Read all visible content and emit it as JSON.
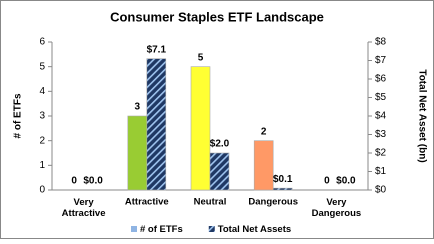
{
  "chart_data": {
    "type": "bar",
    "title": "Consumer Staples ETF Landscape",
    "categories": [
      "Very Attractive",
      "Attractive",
      "Neutral",
      "Dangerous",
      "Very Dangerous"
    ],
    "y_label": "# of ETFs",
    "y2_label": "Total Net Asset (bn)",
    "series": [
      {
        "name": "# of ETFs",
        "color": "#8fb4e3",
        "colors": [
          "#8fb4e3",
          "#99cc33",
          "#ffff33",
          "#ff9966",
          "#8fb4e3"
        ],
        "values": [
          0,
          3,
          5,
          2,
          0
        ]
      },
      {
        "name": "Total Net Assets",
        "color": "#1f3864",
        "axis": "y2",
        "values": [
          0.0,
          7.1,
          2.0,
          0.1,
          0.0
        ],
        "value_labels": [
          "$0.0",
          "$7.1",
          "$2.0",
          "$0.1",
          "$0.0"
        ]
      }
    ],
    "ylim": [
      0,
      6
    ],
    "yticks": [
      0,
      1,
      2,
      3,
      4,
      5,
      6
    ],
    "y2lim": [
      0,
      8
    ],
    "y2ticks": [
      {
        "value": 0,
        "label": "$0"
      },
      {
        "value": 1,
        "label": "$1"
      },
      {
        "value": 2,
        "label": "$2"
      },
      {
        "value": 3,
        "label": "$3"
      },
      {
        "value": 4,
        "label": "$4"
      },
      {
        "value": 5,
        "label": "$5"
      },
      {
        "value": 6,
        "label": "$6"
      },
      {
        "value": 7,
        "label": "$7"
      },
      {
        "value": 8,
        "label": "$8"
      }
    ],
    "grid": false,
    "legend": "bottom"
  }
}
